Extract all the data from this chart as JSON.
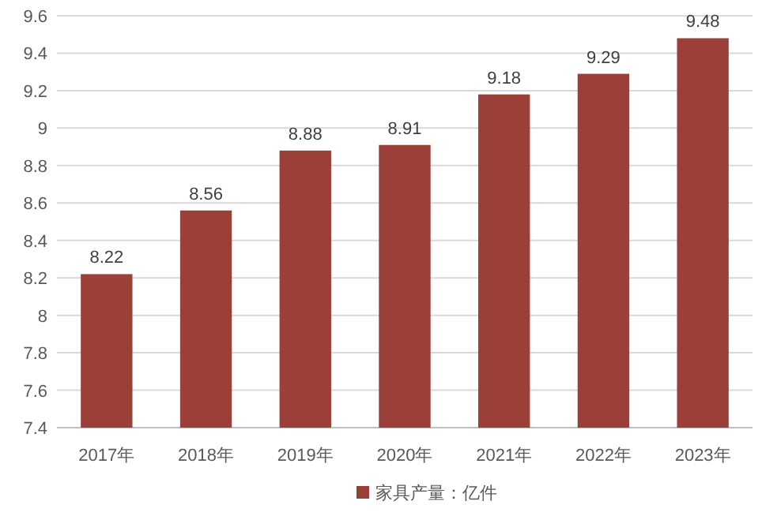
{
  "chart_data": {
    "type": "bar",
    "categories": [
      "2017年",
      "2018年",
      "2019年",
      "2020年",
      "2021年",
      "2022年",
      "2023年"
    ],
    "series": [
      {
        "name": "家具产量：亿件",
        "color": "#9a4038",
        "values": [
          8.22,
          8.56,
          8.88,
          8.91,
          9.18,
          9.29,
          9.48
        ]
      }
    ],
    "ylim": [
      7.4,
      9.6
    ],
    "yticks": [
      7.4,
      7.6,
      7.8,
      8,
      8.2,
      8.4,
      8.6,
      8.8,
      9,
      9.2,
      9.4,
      9.6
    ],
    "grid": "y",
    "legend": "bottom",
    "data_labels": true
  }
}
